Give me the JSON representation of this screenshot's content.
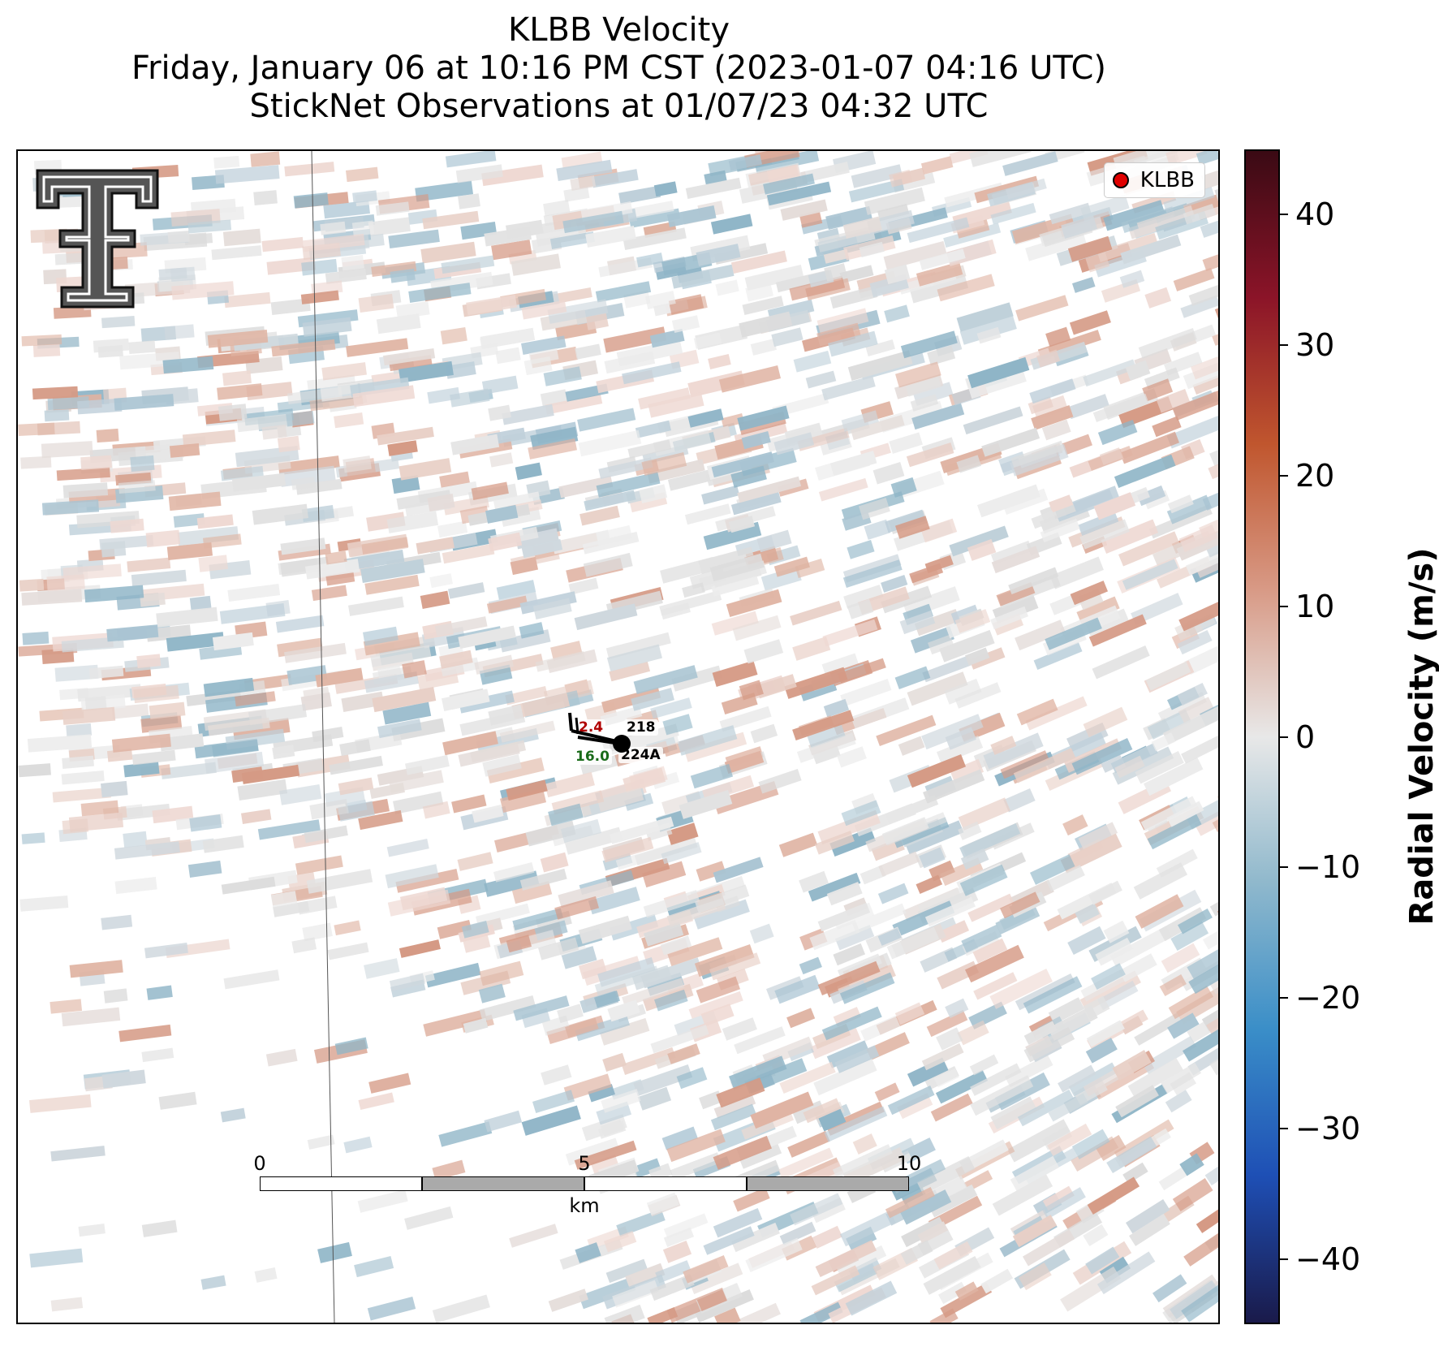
{
  "title": {
    "line1": "KLBB Velocity",
    "line2": "Friday, January 06 at 10:16 PM CST (2023-01-07 04:16 UTC)",
    "line3": "StickNet Observations at 01/07/23 04:32 UTC"
  },
  "legend": {
    "label": "KLBB",
    "marker_color": "#e00000"
  },
  "stations": [
    {
      "id": "218",
      "value": "2.4",
      "value_color": "#b00000"
    },
    {
      "id": "224A",
      "value": "16.0",
      "value_color": "#1a6b1a"
    }
  ],
  "scalebar": {
    "ticks": [
      "0",
      "5",
      "10"
    ],
    "unit": "km",
    "colors": [
      "#ffffff",
      "#aaaaaa",
      "#ffffff",
      "#aaaaaa"
    ]
  },
  "colorbar": {
    "title": "Radial Velocity (m/s)",
    "range": [
      -45,
      45
    ],
    "ticks": [
      "40",
      "30",
      "20",
      "10",
      "0",
      "−10",
      "−20",
      "−30",
      "−40"
    ],
    "gradient": [
      "#1a1a4a",
      "#1e4fb5",
      "#3a8ec8",
      "#8fb8cc",
      "#e8e8e8",
      "#d89a86",
      "#c0562e",
      "#8b1428",
      "#3a0a14"
    ]
  },
  "logo": {
    "icon": "texas-tech-double-t-logo"
  }
}
